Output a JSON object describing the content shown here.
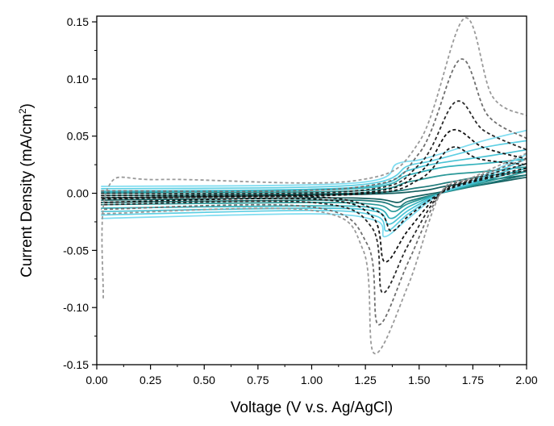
{
  "chart_data": {
    "type": "line",
    "title": "",
    "xlabel": "Voltage (V v.s. Ag/AgCl)",
    "ylabel_main": "Current Density (mA/cm",
    "ylabel_sup": "2",
    "ylabel_tail": ")",
    "xlim": [
      0,
      2
    ],
    "ylim": [
      -0.15,
      0.155
    ],
    "x_ticks": [
      "0.00",
      "0.25",
      "0.50",
      "0.75",
      "1.00",
      "1.25",
      "1.50",
      "1.75",
      "2.00"
    ],
    "y_ticks": [
      "-0.15",
      "-0.10",
      "-0.05",
      "0.00",
      "0.05",
      "0.10",
      "0.15"
    ],
    "x_tick_values": [
      0,
      0.25,
      0.5,
      0.75,
      1.0,
      1.25,
      1.5,
      1.75,
      2.0
    ],
    "y_tick_values": [
      -0.15,
      -0.1,
      -0.05,
      0,
      0.05,
      0.1,
      0.15
    ],
    "grid": false,
    "legend": "none",
    "series": [
      {
        "color": "#145f5f",
        "dash": false,
        "anodic": [
          [
            0.02,
            -0.004
          ],
          [
            1.2,
            -0.001
          ],
          [
            1.5,
            0.002
          ],
          [
            1.62,
            0.006
          ],
          [
            1.8,
            0.011
          ],
          [
            2.0,
            0.016
          ]
        ],
        "cathodic": [
          [
            2.0,
            0.014
          ],
          [
            1.75,
            0.006
          ],
          [
            1.6,
            0.001
          ],
          [
            1.45,
            -0.004
          ],
          [
            1.4,
            -0.008
          ],
          [
            1.3,
            -0.005
          ],
          [
            1.0,
            -0.004
          ],
          [
            0.02,
            -0.006
          ]
        ]
      },
      {
        "color": "#1e7a7a",
        "dash": false,
        "anodic": [
          [
            0.02,
            -0.002
          ],
          [
            1.2,
            0.0
          ],
          [
            1.5,
            0.005
          ],
          [
            1.65,
            0.01
          ],
          [
            1.8,
            0.015
          ],
          [
            2.0,
            0.019
          ]
        ],
        "cathodic": [
          [
            2.0,
            0.016
          ],
          [
            1.75,
            0.006
          ],
          [
            1.6,
            0.0
          ],
          [
            1.45,
            -0.007
          ],
          [
            1.4,
            -0.012
          ],
          [
            1.3,
            -0.007
          ],
          [
            1.0,
            -0.006
          ],
          [
            0.02,
            -0.008
          ]
        ]
      },
      {
        "color": "#2a9898",
        "dash": false,
        "anodic": [
          [
            0.02,
            0.0
          ],
          [
            1.2,
            0.002
          ],
          [
            1.45,
            0.01
          ],
          [
            1.62,
            0.016
          ],
          [
            1.8,
            0.019
          ],
          [
            2.0,
            0.023
          ]
        ],
        "cathodic": [
          [
            2.0,
            0.019
          ],
          [
            1.75,
            0.007
          ],
          [
            1.6,
            0.0
          ],
          [
            1.45,
            -0.009
          ],
          [
            1.38,
            -0.016
          ],
          [
            1.3,
            -0.01
          ],
          [
            1.0,
            -0.008
          ],
          [
            0.02,
            -0.01
          ]
        ]
      },
      {
        "color": "#34b2bc",
        "dash": false,
        "anodic": [
          [
            0.02,
            0.001
          ],
          [
            1.2,
            0.004
          ],
          [
            1.45,
            0.016
          ],
          [
            1.62,
            0.023
          ],
          [
            1.8,
            0.026
          ],
          [
            2.0,
            0.03
          ]
        ],
        "cathodic": [
          [
            2.0,
            0.022
          ],
          [
            1.75,
            0.008
          ],
          [
            1.6,
            0.0
          ],
          [
            1.45,
            -0.012
          ],
          [
            1.37,
            -0.022
          ],
          [
            1.3,
            -0.013
          ],
          [
            1.0,
            -0.011
          ],
          [
            0.02,
            -0.013
          ]
        ]
      },
      {
        "color": "#48c2d4",
        "dash": false,
        "anodic": [
          [
            0.02,
            0.002
          ],
          [
            1.2,
            0.005
          ],
          [
            1.45,
            0.02
          ],
          [
            1.58,
            0.026
          ],
          [
            1.8,
            0.032
          ],
          [
            2.0,
            0.038
          ]
        ],
        "cathodic": [
          [
            2.0,
            0.026
          ],
          [
            1.75,
            0.009
          ],
          [
            1.6,
            0.0
          ],
          [
            1.45,
            -0.015
          ],
          [
            1.36,
            -0.027
          ],
          [
            1.3,
            -0.016
          ],
          [
            1.0,
            -0.013
          ],
          [
            0.02,
            -0.016
          ]
        ]
      },
      {
        "color": "#5ecfe3",
        "dash": false,
        "anodic": [
          [
            0.02,
            0.004
          ],
          [
            1.2,
            0.007
          ],
          [
            1.45,
            0.024
          ],
          [
            1.55,
            0.028
          ],
          [
            1.8,
            0.04
          ],
          [
            2.0,
            0.046
          ]
        ],
        "cathodic": [
          [
            2.0,
            0.03
          ],
          [
            1.75,
            0.01
          ],
          [
            1.6,
            0.0
          ],
          [
            1.45,
            -0.018
          ],
          [
            1.35,
            -0.033
          ],
          [
            1.3,
            -0.02
          ],
          [
            1.0,
            -0.015
          ],
          [
            0.02,
            -0.019
          ]
        ]
      },
      {
        "color": "#7fdcf0",
        "dash": false,
        "anodic": [
          [
            0.02,
            0.006
          ],
          [
            1.2,
            0.009
          ],
          [
            1.4,
            0.026
          ],
          [
            1.52,
            0.03
          ],
          [
            1.8,
            0.046
          ],
          [
            2.0,
            0.055
          ]
        ],
        "cathodic": [
          [
            2.0,
            0.034
          ],
          [
            1.75,
            0.011
          ],
          [
            1.6,
            0.0
          ],
          [
            1.45,
            -0.022
          ],
          [
            1.34,
            -0.038
          ],
          [
            1.3,
            -0.024
          ],
          [
            1.0,
            -0.018
          ],
          [
            0.02,
            -0.022
          ]
        ]
      },
      {
        "color": "#1a1a1a",
        "dash": true,
        "anodic": [
          [
            0.02,
            -0.004
          ],
          [
            1.2,
            -0.001
          ],
          [
            1.5,
            0.012
          ],
          [
            1.65,
            0.04
          ],
          [
            1.78,
            0.03
          ],
          [
            2.0,
            0.025
          ]
        ],
        "cathodic": [
          [
            2.0,
            0.02
          ],
          [
            1.75,
            0.01
          ],
          [
            1.6,
            0.0
          ],
          [
            1.45,
            -0.02
          ],
          [
            1.37,
            -0.033
          ],
          [
            1.3,
            -0.015
          ],
          [
            1.0,
            -0.003
          ],
          [
            0.02,
            -0.005
          ]
        ]
      },
      {
        "color": "#111111",
        "dash": true,
        "anodic": [
          [
            0.02,
            -0.002
          ],
          [
            1.2,
            0.0
          ],
          [
            1.5,
            0.018
          ],
          [
            1.65,
            0.055
          ],
          [
            1.8,
            0.04
          ],
          [
            2.0,
            0.03
          ]
        ],
        "cathodic": [
          [
            2.0,
            0.022
          ],
          [
            1.75,
            0.011
          ],
          [
            1.6,
            0.0
          ],
          [
            1.45,
            -0.032
          ],
          [
            1.34,
            -0.06
          ],
          [
            1.28,
            -0.02
          ],
          [
            1.0,
            -0.005
          ],
          [
            0.02,
            -0.008
          ]
        ]
      },
      {
        "color": "#2a2a2a",
        "dash": true,
        "anodic": [
          [
            0.02,
            0.0
          ],
          [
            1.2,
            0.002
          ],
          [
            1.5,
            0.025
          ],
          [
            1.67,
            0.08
          ],
          [
            1.8,
            0.055
          ],
          [
            2.0,
            0.038
          ]
        ],
        "cathodic": [
          [
            2.0,
            0.026
          ],
          [
            1.75,
            0.012
          ],
          [
            1.6,
            0.0
          ],
          [
            1.45,
            -0.045
          ],
          [
            1.33,
            -0.087
          ],
          [
            1.28,
            -0.03
          ],
          [
            1.0,
            -0.008
          ],
          [
            0.02,
            -0.01
          ]
        ]
      },
      {
        "color": "#6e6e6e",
        "dash": true,
        "anodic": [
          [
            0.02,
            0.002
          ],
          [
            1.2,
            0.005
          ],
          [
            1.5,
            0.035
          ],
          [
            1.69,
            0.117
          ],
          [
            1.82,
            0.068
          ],
          [
            2.0,
            0.048
          ]
        ],
        "cathodic": [
          [
            2.0,
            0.03
          ],
          [
            1.75,
            0.013
          ],
          [
            1.6,
            0.0
          ],
          [
            1.45,
            -0.06
          ],
          [
            1.31,
            -0.115
          ],
          [
            1.26,
            -0.045
          ],
          [
            1.0,
            -0.012
          ],
          [
            0.02,
            -0.014
          ]
        ]
      },
      {
        "color": "#9a9a9a",
        "dash": true,
        "anodic": [
          [
            0.03,
            -0.092
          ],
          [
            0.05,
            0.004
          ],
          [
            0.3,
            0.012
          ],
          [
            1.2,
            0.011
          ],
          [
            1.5,
            0.045
          ],
          [
            1.71,
            0.153
          ],
          [
            1.84,
            0.085
          ],
          [
            2.0,
            0.068
          ]
        ],
        "cathodic": [
          [
            2.0,
            0.035
          ],
          [
            1.75,
            0.014
          ],
          [
            1.6,
            0.0
          ],
          [
            1.45,
            -0.08
          ],
          [
            1.29,
            -0.14
          ],
          [
            1.24,
            -0.05
          ],
          [
            1.0,
            -0.015
          ],
          [
            0.02,
            -0.018
          ]
        ]
      }
    ]
  }
}
